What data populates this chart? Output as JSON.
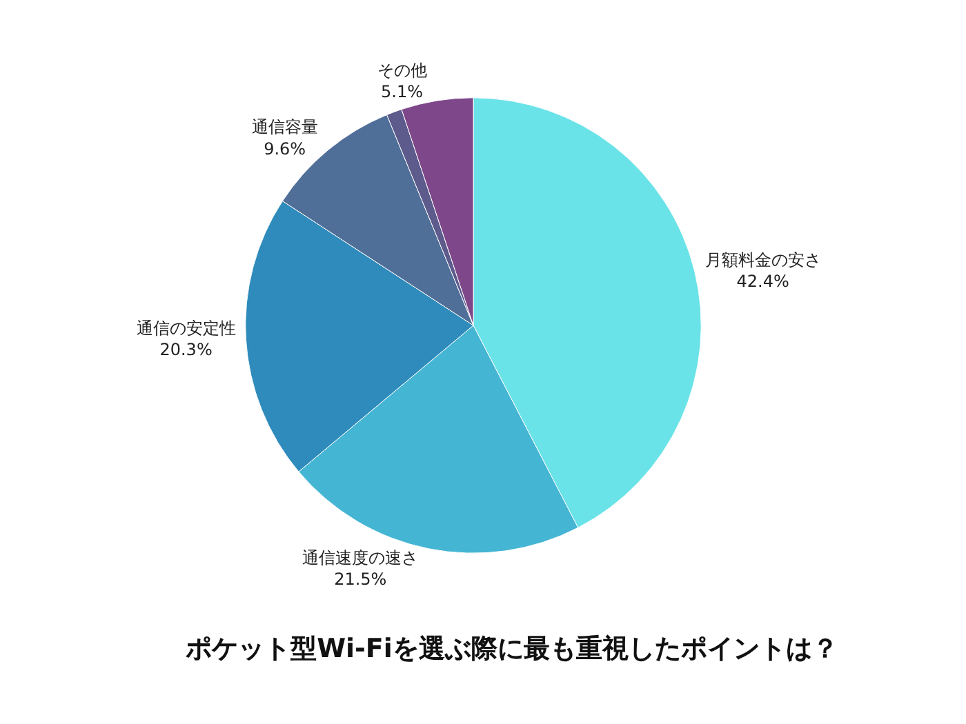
{
  "chart_data": {
    "type": "pie",
    "title": "ポケット型Wi-Fiを選ぶ際に最も重視したポイントは？",
    "categories": [
      "月額料金の安さ",
      "通信速度の速さ",
      "通信の安定性",
      "通信容量",
      null,
      "その他"
    ],
    "values": [
      42.4,
      21.5,
      20.3,
      9.6,
      1.1,
      5.1
    ],
    "value_labels": [
      "42.4%",
      "21.5%",
      "20.3%",
      "9.6%",
      null,
      "5.1%"
    ],
    "colors": [
      "#6ae3e8",
      "#45b5d4",
      "#2e8bbb",
      "#4f6e98",
      "#5d5a8c",
      "#7d478a"
    ],
    "legend": false
  }
}
